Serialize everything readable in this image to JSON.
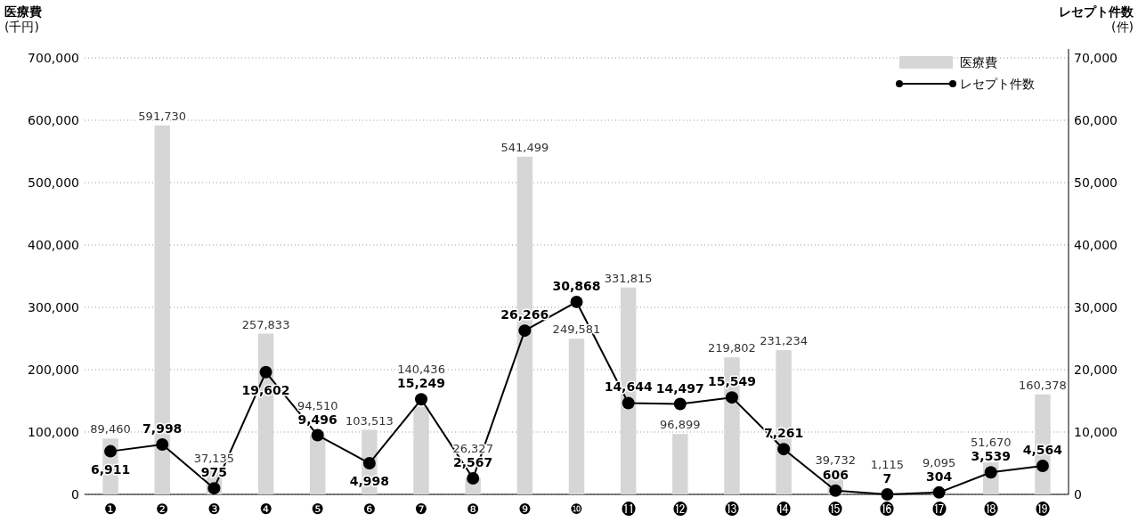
{
  "chart_data": {
    "type": "bar",
    "ylabel": "医療費\n(千円)",
    "y2label": "レセプト件数\n(件)",
    "categories": [
      "❶",
      "❷",
      "❸",
      "❹",
      "❺",
      "❻",
      "❼",
      "❽",
      "❾",
      "❿",
      "⓫",
      "⓬",
      "⓭",
      "⓮",
      "⓯",
      "⓰",
      "⓱",
      "⓲",
      "⓳"
    ],
    "series": [
      {
        "name": "医療費",
        "color": "#d6d6d6",
        "values": [
          89460,
          591730,
          37135,
          257833,
          94510,
          103513,
          140436,
          26327,
          541499,
          249581,
          331815,
          96899,
          219802,
          231234,
          39732,
          1115,
          9095,
          51670,
          160378
        ],
        "value_labels": [
          "89,460",
          "591,730",
          "37,135",
          "257,833",
          "94,510",
          "103,513",
          "140,436",
          "26,327",
          "541,499",
          "249,581",
          "331,815",
          "96,899",
          "219,802",
          "231,234",
          "39,732",
          "1,115",
          "9,095",
          "51,670",
          "160,378"
        ]
      },
      {
        "name": "レセプト件数",
        "type": "line",
        "axis": "y2",
        "color": "#000000",
        "marker": "circle",
        "values": [
          6911,
          7998,
          975,
          19602,
          9496,
          4998,
          15249,
          2567,
          26266,
          30868,
          14644,
          14497,
          15549,
          7261,
          606,
          7,
          304,
          3539,
          4564
        ],
        "value_labels": [
          "6,911",
          "7,998",
          "975",
          "19,602",
          "9,496",
          "4,998",
          "15,249",
          "2,567",
          "26,266",
          "30,868",
          "14,644",
          "14,497",
          "15,549",
          "7,261",
          "606",
          "7",
          "304",
          "3,539",
          "4,564"
        ]
      }
    ],
    "ylim": [
      0,
      700000
    ],
    "yticks": [
      0,
      {
        "value": 100000,
        "label": "100,000"
      },
      {
        "value": 200000,
        "label": "200,000"
      },
      {
        "value": 300000,
        "label": "300,000"
      },
      {
        "value": 400000,
        "label": "400,000"
      },
      {
        "value": 500000,
        "label": "500,000"
      },
      {
        "value": 600000,
        "label": "600,000"
      },
      {
        "value": 700000,
        "label": "700,000"
      }
    ],
    "y2lim": [
      0,
      70000
    ],
    "y2ticks": [
      0,
      {
        "value": 10000,
        "label": "10,000"
      },
      {
        "value": 20000,
        "label": "20,000"
      },
      {
        "value": 30000,
        "label": "30,000"
      },
      {
        "value": 40000,
        "label": "40,000"
      },
      {
        "value": 50000,
        "label": "50,000"
      },
      {
        "value": 60000,
        "label": "60,000"
      },
      {
        "value": 70000,
        "label": "70,000"
      }
    ],
    "grid": "y",
    "legend": "top right"
  }
}
